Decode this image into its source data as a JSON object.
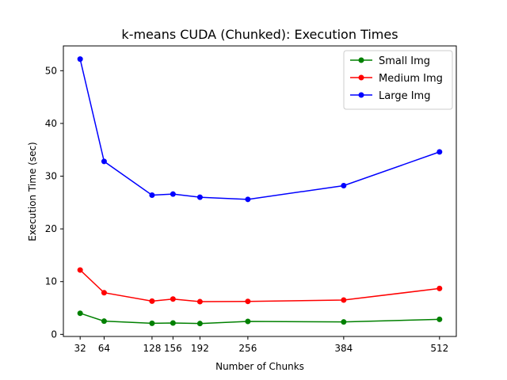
{
  "chart_data": {
    "type": "line",
    "title": "k-means CUDA (Chunked): Execution Times",
    "xlabel": "Number of Chunks",
    "ylabel": "Execution Time (sec)",
    "x": [
      32,
      64,
      128,
      156,
      192,
      256,
      384,
      512
    ],
    "xticks": [
      "32",
      "64",
      "128",
      "156",
      "192",
      "256",
      "384",
      "512"
    ],
    "yticks": [
      0,
      10,
      20,
      30,
      40,
      50
    ],
    "xlim": [
      9.6,
      534.4
    ],
    "ylim": [
      -0.4,
      54.7
    ],
    "legend_position": "top-right",
    "grid": false,
    "series": [
      {
        "name": "Small Img",
        "color": "#008000",
        "values": [
          4.0,
          2.5,
          2.1,
          2.15,
          2.05,
          2.45,
          2.35,
          2.85
        ]
      },
      {
        "name": "Medium Img",
        "color": "#ff0000",
        "values": [
          12.2,
          7.9,
          6.3,
          6.7,
          6.2,
          6.25,
          6.5,
          8.7
        ]
      },
      {
        "name": "Large Img",
        "color": "#0000ff",
        "values": [
          52.2,
          32.8,
          26.4,
          26.6,
          26.0,
          25.6,
          28.2,
          34.6
        ]
      }
    ]
  }
}
